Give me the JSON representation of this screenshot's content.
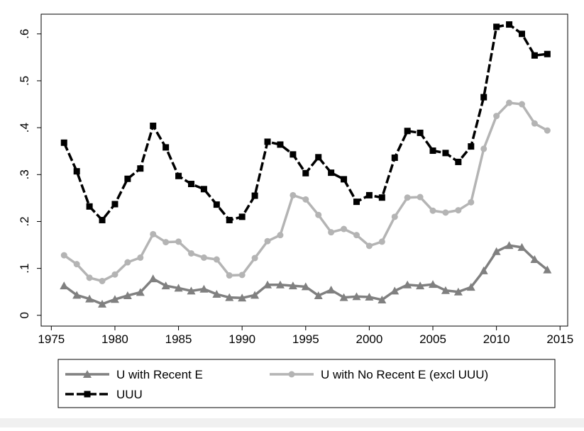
{
  "chart_data": {
    "type": "line",
    "x": [
      1976,
      1977,
      1978,
      1979,
      1980,
      1981,
      1982,
      1983,
      1984,
      1985,
      1986,
      1987,
      1988,
      1989,
      1990,
      1991,
      1992,
      1993,
      1994,
      1995,
      1996,
      1997,
      1998,
      1999,
      2000,
      2001,
      2002,
      2003,
      2004,
      2005,
      2006,
      2007,
      2008,
      2009,
      2010,
      2011,
      2012,
      2013,
      2014
    ],
    "series": [
      {
        "name": "U with Recent E",
        "color": "#808080",
        "marker": "triangle",
        "dash": false,
        "values": [
          0.063,
          0.043,
          0.035,
          0.024,
          0.034,
          0.042,
          0.049,
          0.078,
          0.063,
          0.058,
          0.052,
          0.056,
          0.045,
          0.038,
          0.037,
          0.043,
          0.065,
          0.065,
          0.063,
          0.061,
          0.042,
          0.054,
          0.038,
          0.04,
          0.039,
          0.033,
          0.052,
          0.065,
          0.063,
          0.066,
          0.053,
          0.05,
          0.06,
          0.095,
          0.136,
          0.149,
          0.145,
          0.119,
          0.097
        ]
      },
      {
        "name": "U with No Recent E (excl UUU)",
        "color": "#b4b4b4",
        "marker": "circle",
        "dash": false,
        "values": [
          0.128,
          0.109,
          0.08,
          0.073,
          0.087,
          0.113,
          0.123,
          0.173,
          0.156,
          0.157,
          0.132,
          0.123,
          0.119,
          0.085,
          0.086,
          0.122,
          0.158,
          0.171,
          0.256,
          0.247,
          0.214,
          0.177,
          0.184,
          0.171,
          0.148,
          0.157,
          0.21,
          0.251,
          0.252,
          0.223,
          0.219,
          0.224,
          0.241,
          0.355,
          0.425,
          0.453,
          0.45,
          0.409,
          0.394
        ]
      },
      {
        "name": "UUU",
        "color": "#000000",
        "marker": "square",
        "dash": true,
        "values": [
          0.368,
          0.307,
          0.232,
          0.203,
          0.237,
          0.291,
          0.313,
          0.404,
          0.358,
          0.297,
          0.28,
          0.269,
          0.236,
          0.203,
          0.21,
          0.255,
          0.37,
          0.364,
          0.343,
          0.303,
          0.337,
          0.304,
          0.29,
          0.242,
          0.256,
          0.251,
          0.336,
          0.393,
          0.389,
          0.351,
          0.346,
          0.327,
          0.36,
          0.465,
          0.615,
          0.62,
          0.6,
          0.554,
          0.557
        ]
      }
    ],
    "xlim": [
      1974.2,
      2015.6
    ],
    "xticks": [
      1975,
      1980,
      1985,
      1990,
      1995,
      2000,
      2005,
      2010,
      2015
    ],
    "ylim": [
      -0.023,
      0.642
    ],
    "yticks": [
      0,
      {
        "value": 0.1,
        "label": ".1"
      },
      {
        "value": 0.2,
        "label": ".2"
      },
      {
        "value": 0.3,
        "label": ".3"
      },
      {
        "value": 0.4,
        "label": ".4"
      },
      {
        "value": 0.5,
        "label": ".5"
      },
      {
        "value": 0.6,
        "label": ".6"
      }
    ],
    "grid": false
  }
}
